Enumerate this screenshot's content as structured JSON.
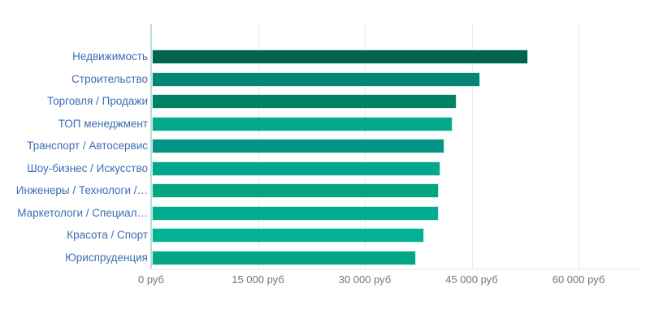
{
  "chart_data": {
    "type": "bar",
    "orientation": "horizontal",
    "title": "",
    "categories": [
      "Недвижимость",
      "Строительство",
      "Торговля / Продажи",
      "ТОП менеджмент",
      "Транспорт / Автосервис",
      "Шоу-бизнес / Искусство",
      "Инженеры / Технологи /…",
      "Маркетологи / Специал…",
      "Красота / Спорт",
      "Юриспруденция"
    ],
    "values": [
      52600,
      45800,
      42500,
      42000,
      40800,
      40300,
      40000,
      40000,
      38000,
      36800
    ],
    "bar_colors": [
      "#016350",
      "#048677",
      "#018165",
      "#02A98A",
      "#049486",
      "#03A68F",
      "#03A77F",
      "#02AC8F",
      "#04B193",
      "#03A685"
    ],
    "unit": "руб",
    "xlabel": "",
    "ylabel": "",
    "xlim": [
      0,
      60000
    ],
    "grid": true,
    "legend": false,
    "x_ticks": [
      {
        "value": 0,
        "label": "0 руб"
      },
      {
        "value": 15000,
        "label": "15 000 руб"
      },
      {
        "value": 30000,
        "label": "30 000 руб"
      },
      {
        "value": 45000,
        "label": "45 000 руб"
      },
      {
        "value": 60000,
        "label": "60 000 руб"
      }
    ],
    "colors": {
      "category_label": "#3C6DB4",
      "tick_label": "#757575",
      "gridline": "#e7e7e7",
      "zero_line": "#b5ded7",
      "bar_border": "#cdeee5",
      "background": "#ffffff"
    }
  }
}
